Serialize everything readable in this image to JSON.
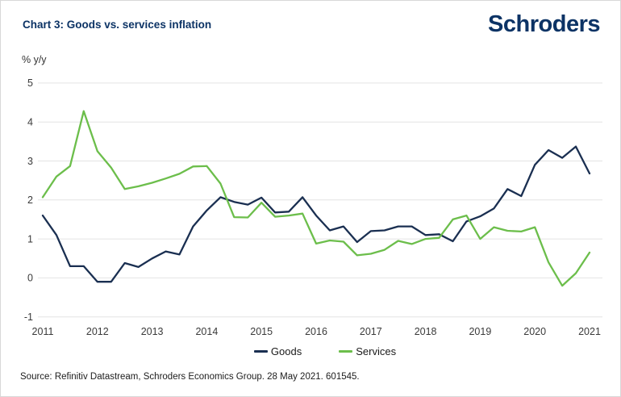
{
  "header": {
    "title": "Chart 3: Goods vs. services inflation",
    "logo": "Schroders"
  },
  "footer": {
    "source": "Source: Refinitiv Datastream, Schroders Economics Group. 28 May 2021. 601545."
  },
  "chart_data": {
    "type": "line",
    "title": "Chart 3: Goods vs. services inflation",
    "xlabel": "",
    "ylabel": "% y/y",
    "ylim": [
      -1,
      5
    ],
    "yticks": [
      5,
      4,
      3,
      2,
      1,
      0,
      -1
    ],
    "x_tick_labels": [
      "2011",
      "2012",
      "2013",
      "2014",
      "2015",
      "2016",
      "2017",
      "2018",
      "2019",
      "2020",
      "2021"
    ],
    "x_frequency": "quarterly",
    "x_range": "2011 Q1 to 2021 Q1",
    "grid": "horizontal",
    "legend_position": "bottom-center",
    "series": [
      {
        "name": "Goods",
        "color": "#1a2f51",
        "values": [
          1.6,
          1.1,
          0.3,
          0.3,
          -0.1,
          -0.1,
          0.38,
          0.28,
          0.5,
          0.68,
          0.6,
          1.32,
          1.73,
          2.07,
          1.95,
          1.88,
          2.06,
          1.68,
          1.7,
          2.07,
          1.6,
          1.22,
          1.32,
          0.92,
          1.2,
          1.22,
          1.32,
          1.32,
          1.1,
          1.12,
          0.94,
          1.45,
          1.58,
          1.78,
          2.28,
          2.1,
          2.9,
          3.28,
          3.08,
          3.37,
          2.68
        ]
      },
      {
        "name": "Services",
        "color": "#6cbe4b",
        "values": [
          2.07,
          2.6,
          2.87,
          4.28,
          3.25,
          2.83,
          2.28,
          2.35,
          2.44,
          2.55,
          2.67,
          2.86,
          2.87,
          2.42,
          1.56,
          1.55,
          1.93,
          1.57,
          1.6,
          1.65,
          0.88,
          0.96,
          0.93,
          0.58,
          0.62,
          0.72,
          0.95,
          0.87,
          1.0,
          1.03,
          1.5,
          1.6,
          1.0,
          1.3,
          1.21,
          1.19,
          1.3,
          0.4,
          -0.2,
          0.12,
          0.65
        ]
      }
    ]
  }
}
